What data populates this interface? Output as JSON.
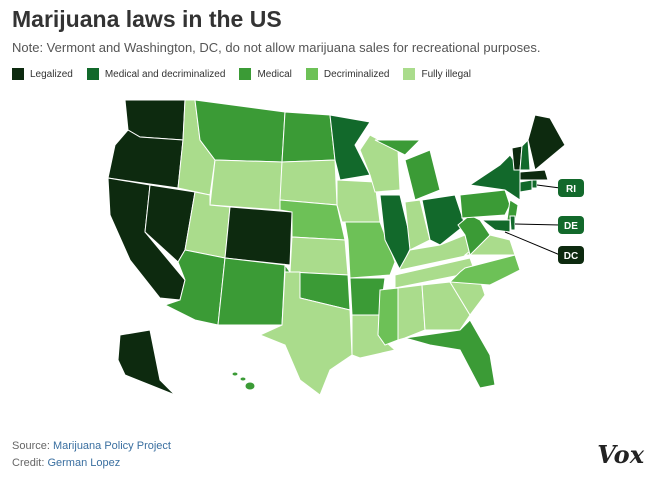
{
  "title": "Marijuana laws in the US",
  "note": "Note: Vermont and Washington, DC, do not allow marijuana sales for recreational purposes.",
  "legend": [
    {
      "label": "Legalized",
      "color": "#0d2a0f"
    },
    {
      "label": "Medical and decriminalized",
      "color": "#12692b"
    },
    {
      "label": "Medical",
      "color": "#3b9b36"
    },
    {
      "label": "Decriminalized",
      "color": "#6dc157"
    },
    {
      "label": "Fully illegal",
      "color": "#aadc8c"
    }
  ],
  "callouts": [
    "RI",
    "DE",
    "DC"
  ],
  "source": {
    "label": "Source:",
    "text": "Marijuana Policy Project"
  },
  "credit": {
    "label": "Credit:",
    "text": "German Lopez"
  },
  "logo": "Vox"
}
